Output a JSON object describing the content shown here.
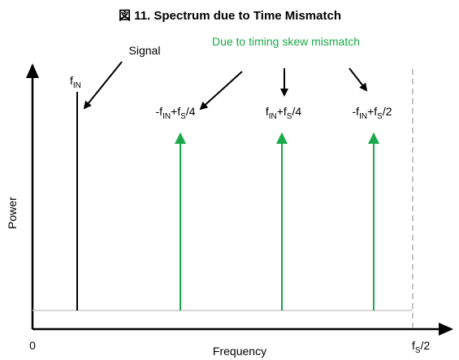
{
  "title": "図 11. Spectrum due to Time Mismatch",
  "signal_label": "Signal",
  "mismatch_label": "Due to timing skew mismatch",
  "tones": {
    "fin": [
      "f",
      "IN"
    ],
    "spur1": [
      "-f",
      "IN",
      "+f",
      "S",
      "/4"
    ],
    "spur2": [
      "f",
      "IN",
      "+f",
      "S",
      "/4"
    ],
    "spur3": [
      "-f",
      "IN",
      "+f",
      "S",
      "/2"
    ]
  },
  "y_axis_label": "Power",
  "x_axis_label": "Frequency",
  "x_origin": "0",
  "x_end": [
    "f",
    "S",
    "/2"
  ]
}
